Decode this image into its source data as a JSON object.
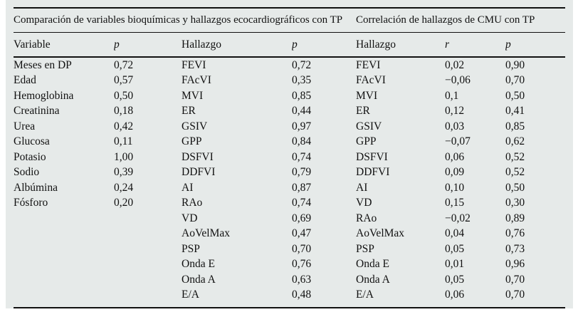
{
  "colors": {
    "panel_bg": "#e6eae9",
    "rule": "#111111",
    "text": "#111111"
  },
  "table": {
    "group_headers": [
      {
        "label": "Comparación de variables bioquímicas y hallazgos ecocardiográficos con TP"
      },
      {
        "label": "Correlación de hallazgos de CMU con TP"
      }
    ],
    "columns": [
      "Variable",
      "p",
      "Hallazgo",
      "p",
      "Hallazgo",
      "r",
      "p"
    ],
    "bioquimicas": [
      {
        "variable": "Meses en DP",
        "p": "0,72"
      },
      {
        "variable": "Edad",
        "p": "0,57"
      },
      {
        "variable": "Hemoglobina",
        "p": "0,50"
      },
      {
        "variable": "Creatinina",
        "p": "0,18"
      },
      {
        "variable": "Urea",
        "p": "0,42"
      },
      {
        "variable": "Glucosa",
        "p": "0,11"
      },
      {
        "variable": "Potasio",
        "p": "1,00"
      },
      {
        "variable": "Sodio",
        "p": "0,39"
      },
      {
        "variable": "Albúmina",
        "p": "0,24"
      },
      {
        "variable": "Fósforo",
        "p": "0,20"
      }
    ],
    "ecocardiograficos": [
      {
        "hallazgo": "FEVI",
        "p": "0,72"
      },
      {
        "hallazgo": "FAcVI",
        "p": "0,35"
      },
      {
        "hallazgo": "MVI",
        "p": "0,85"
      },
      {
        "hallazgo": "ER",
        "p": "0,44"
      },
      {
        "hallazgo": "GSIV",
        "p": "0,97"
      },
      {
        "hallazgo": "GPP",
        "p": "0,84"
      },
      {
        "hallazgo": "DSFVI",
        "p": "0,74"
      },
      {
        "hallazgo": "DDFVI",
        "p": "0,79"
      },
      {
        "hallazgo": "AI",
        "p": "0,87"
      },
      {
        "hallazgo": "RAo",
        "p": "0,74"
      },
      {
        "hallazgo": "VD",
        "p": "0,69"
      },
      {
        "hallazgo": "AoVelMax",
        "p": "0,47"
      },
      {
        "hallazgo": "PSP",
        "p": "0,70"
      },
      {
        "hallazgo": "Onda E",
        "p": "0,76"
      },
      {
        "hallazgo": "Onda A",
        "p": "0,63"
      },
      {
        "hallazgo": "E/A",
        "p": "0,48"
      }
    ],
    "cmu": [
      {
        "hallazgo": "FEVI",
        "r": "0,02",
        "p": "0,90"
      },
      {
        "hallazgo": "FAcVI",
        "r": "−0,06",
        "p": "0,70"
      },
      {
        "hallazgo": "MVI",
        "r": "0,1",
        "p": "0,50"
      },
      {
        "hallazgo": "ER",
        "r": "0,12",
        "p": "0,41"
      },
      {
        "hallazgo": "GSIV",
        "r": "0,03",
        "p": "0,85"
      },
      {
        "hallazgo": "GPP",
        "r": "−0,07",
        "p": "0,62"
      },
      {
        "hallazgo": "DSFVI",
        "r": "0,06",
        "p": "0,52"
      },
      {
        "hallazgo": "DDFVI",
        "r": "0,09",
        "p": "0,52"
      },
      {
        "hallazgo": "AI",
        "r": "0,10",
        "p": "0,50"
      },
      {
        "hallazgo": "VD",
        "r": "0,15",
        "p": "0,30"
      },
      {
        "hallazgo": "RAo",
        "r": "−0,02",
        "p": "0,89"
      },
      {
        "hallazgo": "AoVelMax",
        "r": "0,04",
        "p": "0,76"
      },
      {
        "hallazgo": "PSP",
        "r": "0,05",
        "p": "0,73"
      },
      {
        "hallazgo": "Onda E",
        "r": "0,01",
        "p": "0,96"
      },
      {
        "hallazgo": "Onda A",
        "r": "0,05",
        "p": "0,70"
      },
      {
        "hallazgo": "E/A",
        "r": "0,06",
        "p": "0,70"
      }
    ]
  }
}
